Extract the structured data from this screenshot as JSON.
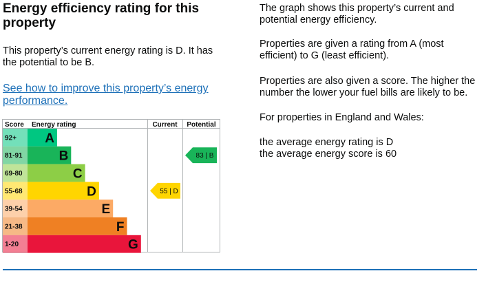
{
  "heading": "Energy efficiency rating for this property",
  "current_text": "This property’s current energy rating is D. It has the potential to be B.",
  "improve_link": "See how to improve this property’s energy performance.",
  "info": {
    "graph_text": "The graph shows this property’s current and potential energy efficiency.",
    "ratings_text": "Properties are given a rating from A (most efficient) to G (least efficient).",
    "score_text": "Properties are also given a score. The higher the number the lower your fuel bills are likely to be.",
    "region_text": "For properties in England and Wales:",
    "avg_rating_text": "the average energy rating is D",
    "avg_score_text": "the average energy score is 60"
  },
  "chart_data": {
    "type": "bar",
    "columns": [
      "Score",
      "Energy rating",
      "Current",
      "Potential"
    ],
    "bands": [
      {
        "score": "92+",
        "letter": "A",
        "color": "#00c781"
      },
      {
        "score": "81-91",
        "letter": "B",
        "color": "#19b459"
      },
      {
        "score": "69-80",
        "letter": "C",
        "color": "#8dce46"
      },
      {
        "score": "55-68",
        "letter": "D",
        "color": "#ffd500"
      },
      {
        "score": "39-54",
        "letter": "E",
        "color": "#fcaa65"
      },
      {
        "score": "21-38",
        "letter": "F",
        "color": "#ef8023"
      },
      {
        "score": "1-20",
        "letter": "G",
        "color": "#e9153b"
      }
    ],
    "current": {
      "score": 55,
      "letter": "D",
      "label": "55 | D"
    },
    "potential": {
      "score": 83,
      "letter": "B",
      "label": "83 | B"
    }
  }
}
